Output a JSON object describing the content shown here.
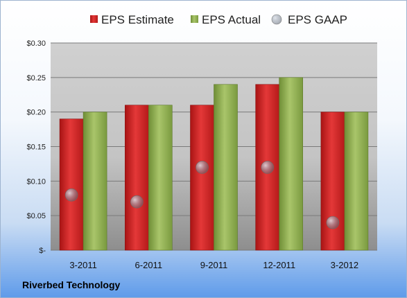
{
  "company": "Riverbed Technology",
  "chart_data": {
    "type": "bar",
    "categories": [
      "3-2011",
      "6-2011",
      "9-2011",
      "12-2011",
      "3-2012"
    ],
    "series": [
      {
        "name": "EPS Estimate",
        "values": [
          0.19,
          0.21,
          0.21,
          0.24,
          0.2
        ],
        "color": "#d42424"
      },
      {
        "name": "EPS Actual",
        "values": [
          0.2,
          0.21,
          0.24,
          0.25,
          0.2
        ],
        "color": "#8fae4e"
      },
      {
        "name": "EPS GAAP",
        "kind": "marker",
        "values": [
          0.08,
          0.07,
          0.12,
          0.12,
          0.04
        ],
        "color": "#9aa3b0"
      }
    ],
    "yticks": [
      "$-",
      "$0.05",
      "$0.10",
      "$0.15",
      "$0.20",
      "$0.25",
      "$0.30"
    ],
    "ylim": [
      0,
      0.3
    ],
    "grid": true,
    "legend_position": "top"
  }
}
